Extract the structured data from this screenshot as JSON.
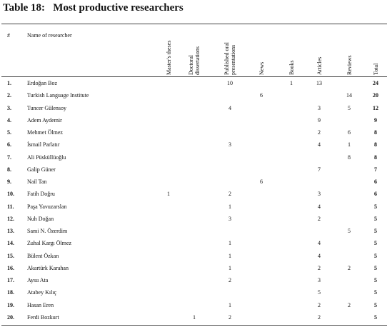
{
  "title": "Table 18:   Most productive researchers",
  "table": {
    "columns": [
      "#",
      "Name of researcher",
      "Master's theses",
      "Doctoral dissertations",
      "Published oral presentations",
      "News",
      "Books",
      "Articles",
      "Reviews",
      "Total"
    ],
    "rows": [
      [
        "1.",
        "Erdoğan Boz",
        null,
        null,
        10,
        null,
        1,
        13,
        null,
        24
      ],
      [
        "2.",
        "Turkish Language Institute",
        null,
        null,
        null,
        6,
        null,
        null,
        14,
        20
      ],
      [
        "3.",
        "Tuncer Gülensoy",
        null,
        null,
        4,
        null,
        null,
        3,
        5,
        12
      ],
      [
        "4.",
        "Adem Aydemir",
        null,
        null,
        null,
        null,
        null,
        9,
        null,
        9
      ],
      [
        "5.",
        "Mehmet Ölmez",
        null,
        null,
        null,
        null,
        null,
        2,
        6,
        8
      ],
      [
        "6.",
        "İsmail Parlatır",
        null,
        null,
        3,
        null,
        null,
        4,
        1,
        8
      ],
      [
        "7.",
        "Ali Püsküllüoğlu",
        null,
        null,
        null,
        null,
        null,
        null,
        8,
        8
      ],
      [
        "8.",
        "Galip Güner",
        null,
        null,
        null,
        null,
        null,
        7,
        null,
        7
      ],
      [
        "9.",
        "Nail Tan",
        null,
        null,
        null,
        6,
        null,
        null,
        null,
        6
      ],
      [
        "10.",
        "Fatih Doğru",
        1,
        null,
        2,
        null,
        null,
        3,
        null,
        6
      ],
      [
        "11.",
        "Paşa Yavuzarslan",
        null,
        null,
        1,
        null,
        null,
        4,
        null,
        5
      ],
      [
        "12.",
        "Nuh Doğan",
        null,
        null,
        3,
        null,
        null,
        2,
        null,
        5
      ],
      [
        "13.",
        "Sami N. Özerdim",
        null,
        null,
        null,
        null,
        null,
        null,
        5,
        5
      ],
      [
        "14.",
        "Zuhal Kargı Ölmez",
        null,
        null,
        1,
        null,
        null,
        4,
        null,
        5
      ],
      [
        "15.",
        "Bülent Özkan",
        null,
        null,
        1,
        null,
        null,
        4,
        null,
        5
      ],
      [
        "16.",
        "Akartürk Karahan",
        null,
        null,
        1,
        null,
        null,
        2,
        2,
        5
      ],
      [
        "17.",
        "Aysu Ata",
        null,
        null,
        2,
        null,
        null,
        3,
        null,
        5
      ],
      [
        "18.",
        "Atabey Kılıç",
        null,
        null,
        null,
        null,
        null,
        5,
        null,
        5
      ],
      [
        "19.",
        "Hasan Eren",
        null,
        null,
        1,
        null,
        null,
        2,
        2,
        5
      ],
      [
        "20.",
        "Ferdi Bozkurt",
        null,
        1,
        2,
        null,
        null,
        2,
        null,
        5
      ]
    ]
  }
}
